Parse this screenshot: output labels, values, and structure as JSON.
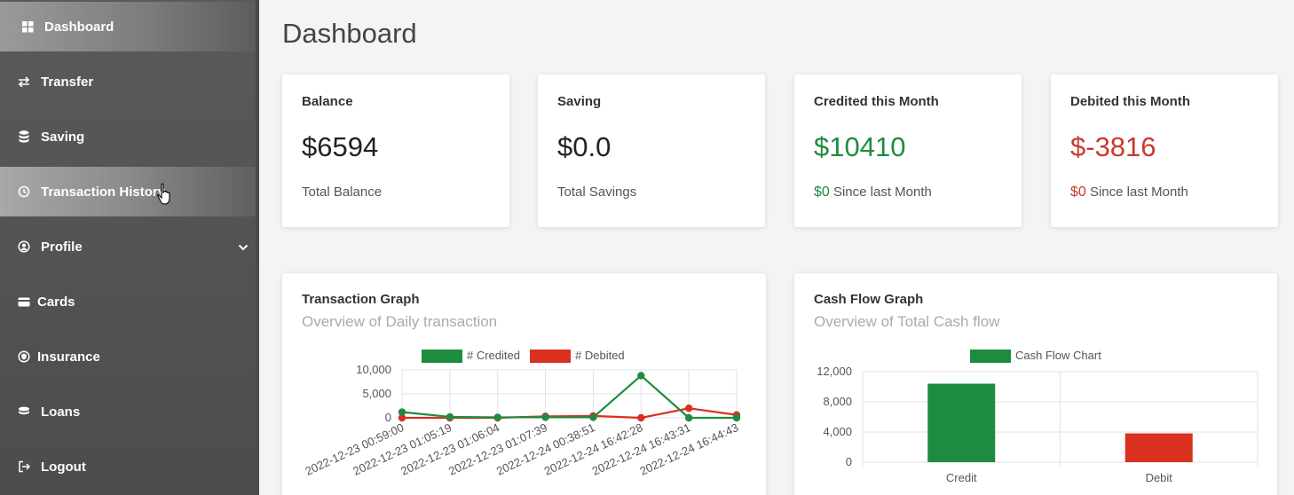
{
  "sidebar": {
    "items": [
      {
        "label": "Dashboard",
        "icon": "grid-icon"
      },
      {
        "label": "Transfer",
        "icon": "transfer-icon"
      },
      {
        "label": "Saving",
        "icon": "database-icon"
      },
      {
        "label": "Transaction History",
        "icon": "history-icon"
      },
      {
        "label": "Profile",
        "icon": "user-circle-icon"
      },
      {
        "label": "Cards",
        "icon": "card-icon"
      },
      {
        "label": "Insurance",
        "icon": "shield-circle-icon"
      },
      {
        "label": "Loans",
        "icon": "coins-icon"
      },
      {
        "label": "Logout",
        "icon": "logout-icon"
      }
    ]
  },
  "page": {
    "title": "Dashboard"
  },
  "stats": [
    {
      "title": "Balance",
      "value": "$6594",
      "sub": "Total Balance"
    },
    {
      "title": "Saving",
      "value": "$0.0",
      "sub": "Total Savings"
    },
    {
      "title": "Credited this Month",
      "value": "$10410",
      "sub_amount": "$0",
      "sub": "Since last Month",
      "color": "#1e8c3f"
    },
    {
      "title": "Debited this Month",
      "value": "$-3816",
      "sub_amount": "$0",
      "sub": "Since last Month",
      "color": "#c83a2e"
    }
  ],
  "transaction_graph": {
    "title": "Transaction Graph",
    "subtitle": "Overview of Daily transaction"
  },
  "cashflow_graph": {
    "title": "Cash Flow Graph",
    "subtitle": "Overview of Total Cash flow"
  },
  "chart_data": [
    {
      "type": "line",
      "x": [
        "2022-12-23 00:59:00",
        "2022-12-23 01:05:19",
        "2022-12-23 01:06:04",
        "2022-12-23 01:07:39",
        "2022-12-24 00:38:51",
        "2022-12-24 16:42:28",
        "2022-12-24 16:43:31",
        "2022-12-24 16:44:43"
      ],
      "series": [
        {
          "name": "# Credited",
          "color": "#1e8c3f",
          "values": [
            1200,
            200,
            100,
            100,
            100,
            8800,
            0,
            0
          ]
        },
        {
          "name": "# Debited",
          "color": "#d9301f",
          "values": [
            0,
            0,
            0,
            300,
            400,
            0,
            2000,
            600
          ]
        }
      ],
      "ylim": [
        0,
        10000
      ],
      "yticks": [
        "10,000",
        "5,000",
        "0"
      ],
      "grid": true,
      "legend": "top"
    },
    {
      "type": "bar",
      "categories": [
        "Credit",
        "Debit"
      ],
      "values": [
        10410,
        3816
      ],
      "colors": [
        "#1e8c3f",
        "#d9301f"
      ],
      "series": [
        {
          "name": "Cash Flow Chart"
        }
      ],
      "ylim": [
        0,
        12000
      ],
      "yticks": [
        "12,000",
        "8,000",
        "4,000",
        "0"
      ],
      "grid": true,
      "legend": "top"
    }
  ]
}
